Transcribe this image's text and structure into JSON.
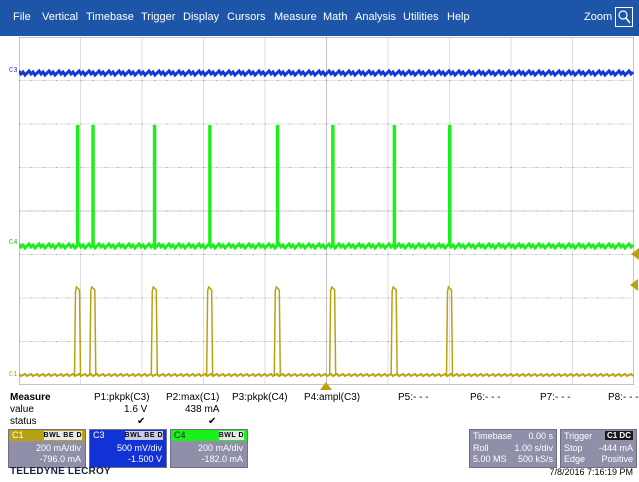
{
  "menu": {
    "items": [
      "File",
      "Vertical",
      "Timebase",
      "Trigger",
      "Display",
      "Cursors",
      "Measure",
      "Math",
      "Analysis",
      "Utilities",
      "Help"
    ],
    "zoom_label": "Zoom",
    "zoom_icon": "zoom-magnifier-icon"
  },
  "channels": {
    "c3": {
      "tag": "C3",
      "color": "#1536d8"
    },
    "c4": {
      "tag": "C4",
      "color": "#1cf01c"
    },
    "c1": {
      "tag": "C1",
      "color": "#b9a212"
    }
  },
  "measure": {
    "header_label": "Measure",
    "value_label": "value",
    "status_label": "status",
    "params": [
      {
        "name": "P1:pkpk(C3)",
        "value": "1.6 V",
        "status": "✔"
      },
      {
        "name": "P2:max(C1)",
        "value": "438 mA",
        "status": "✔"
      },
      {
        "name": "P3:pkpk(C4)",
        "value": "",
        "status": ""
      },
      {
        "name": "P4:ampl(C3)",
        "value": "",
        "status": ""
      },
      {
        "name": "P5:- - -",
        "value": "",
        "status": ""
      },
      {
        "name": "P6:- - -",
        "value": "",
        "status": ""
      },
      {
        "name": "P7:- - -",
        "value": "",
        "status": ""
      },
      {
        "name": "P8:- - -",
        "value": "",
        "status": ""
      }
    ]
  },
  "channel_boxes": {
    "c1": {
      "label": "C1",
      "flags": "BWL BE D",
      "scale": "200 mA/div",
      "offset": "-796.0 mA",
      "header_color": "#b9a212"
    },
    "c3": {
      "label": "C3",
      "flags": "BWL BE D",
      "scale": "500 mV/div",
      "offset": "-1.500 V",
      "header_color": "#1536d8"
    },
    "c4": {
      "label": "C4",
      "flags": "BWL D",
      "scale": "200 mA/div",
      "offset": "-182.0 mA",
      "header_color": "#1cf01c"
    }
  },
  "timebase": {
    "title": "Timebase",
    "delay": "0.00 s",
    "mode": "Roll",
    "per_div": "1.00 s/div",
    "samples": "5.00 MS",
    "rate": "500 kS/s"
  },
  "trigger": {
    "title": "Trigger",
    "source_flags": "C1 DC",
    "state": "Stop",
    "level": "-444 mA",
    "type": "Edge",
    "slope": "Positive"
  },
  "branding": {
    "logo": "TELEDYNE LECROY"
  },
  "datetime": "7/8/2016 7:16:19 PM",
  "pulses": {
    "times_div": [
      1.0,
      1.2,
      2.2,
      3.1,
      4.2,
      5.1,
      6.1,
      7.0
    ],
    "c1_double_pulse_times_div": [
      1.0,
      1.2
    ]
  }
}
